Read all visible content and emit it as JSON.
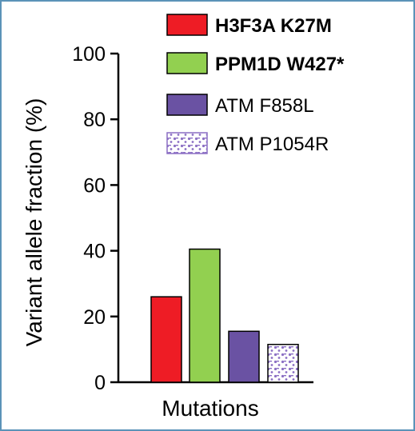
{
  "chart_data": {
    "type": "bar",
    "xlabel": "Mutations",
    "ylabel": "Variant allele fraction (%)",
    "ylim": [
      0,
      100
    ],
    "yticks": [
      0,
      20,
      40,
      60,
      80,
      100
    ],
    "legend_position": "top-right",
    "series": [
      {
        "name": "H3F3A K27M",
        "value": 26,
        "color": "#ee1c25",
        "pattern": "solid",
        "legend_bold": true
      },
      {
        "name": "PPM1D W427*",
        "value": 40.5,
        "color": "#92d050",
        "pattern": "solid",
        "legend_bold": true
      },
      {
        "name": "ATM F858L",
        "value": 15.5,
        "color": "#6a52a3",
        "pattern": "solid",
        "legend_bold": false
      },
      {
        "name": "ATM P1054R",
        "value": 11.5,
        "color": "#8b6fc4",
        "pattern": "dotted",
        "legend_bold": false
      }
    ]
  }
}
